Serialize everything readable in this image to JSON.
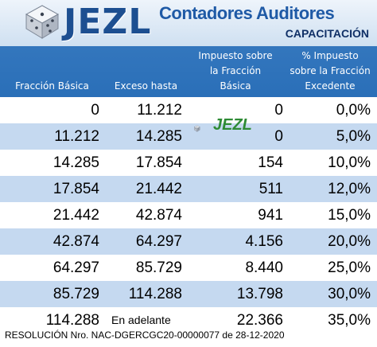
{
  "header": {
    "brand": "JEZL",
    "tagline": "Contadores Auditores",
    "subtitle": "CAPACITACIÓN"
  },
  "columns": [
    {
      "lines": [
        "Fracción Básica"
      ]
    },
    {
      "lines": [
        "Exceso hasta"
      ]
    },
    {
      "lines": [
        "Impuesto sobre",
        "la Fracción",
        "Básica"
      ]
    },
    {
      "lines": [
        "% Impuesto",
        "sobre la Fracción",
        "Excedente"
      ]
    }
  ],
  "rows": [
    {
      "fraccion": "0",
      "exceso": "11.212",
      "impuesto": "0",
      "porcentaje": "0,0%"
    },
    {
      "fraccion": "11.212",
      "exceso": "14.285",
      "impuesto": "0",
      "porcentaje": "5,0%"
    },
    {
      "fraccion": "14.285",
      "exceso": "17.854",
      "impuesto": "154",
      "porcentaje": "10,0%"
    },
    {
      "fraccion": "17.854",
      "exceso": "21.442",
      "impuesto": "511",
      "porcentaje": "12,0%"
    },
    {
      "fraccion": "21.442",
      "exceso": "42.874",
      "impuesto": "941",
      "porcentaje": "15,0%"
    },
    {
      "fraccion": "42.874",
      "exceso": "64.297",
      "impuesto": "4.156",
      "porcentaje": "20,0%"
    },
    {
      "fraccion": "64.297",
      "exceso": "85.729",
      "impuesto": "8.440",
      "porcentaje": "25,0%"
    },
    {
      "fraccion": "85.729",
      "exceso": "114.288",
      "impuesto": "13.798",
      "porcentaje": "30,0%"
    },
    {
      "fraccion": "114.288",
      "exceso": "En adelante",
      "impuesto": "22.366",
      "porcentaje": "35,0%"
    }
  ],
  "watermark": {
    "text": "JEZL"
  },
  "footer": {
    "resolution": "RESOLUCIÓN Nro. NAC-DGERCGC20-00000077 de 28-12-2020"
  },
  "colors": {
    "header_blue": "#2a6fb8",
    "row_alt": "#c5d9f0",
    "brand": "#1d4f91",
    "watermark": "#2e8b35"
  }
}
